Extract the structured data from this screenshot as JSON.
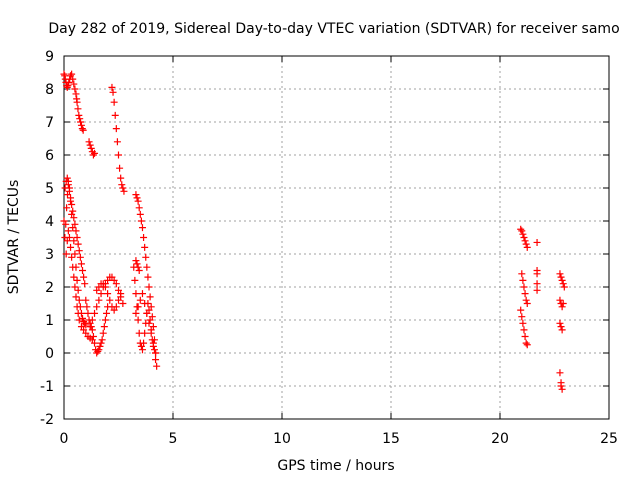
{
  "chart_data": {
    "type": "scatter",
    "title": "Day 282 of 2019, Sidereal Day-to-day VTEC variation (SDTVAR) for receiver samo",
    "xlabel": "GPS time / hours",
    "ylabel": "SDTVAR / TECUs",
    "xlim": [
      0,
      25
    ],
    "ylim": [
      -2,
      9
    ],
    "xticks": [
      "0",
      "5",
      "10",
      "15",
      "20",
      "25"
    ],
    "yticks": [
      "-2",
      "-1",
      "0",
      "1",
      "2",
      "3",
      "4",
      "5",
      "6",
      "7",
      "8",
      "9"
    ],
    "grid": true,
    "marker": "+",
    "color": "#ff0000",
    "series": [
      {
        "name": "SDTVAR",
        "x": [
          0.0,
          0.03,
          0.06,
          0.09,
          0.12,
          0.15,
          0.18,
          0.22,
          0.26,
          0.3,
          0.35,
          0.4,
          0.45,
          0.5,
          0.55,
          0.58,
          0.0,
          0.04,
          0.08,
          0.12,
          0.16,
          0.2,
          0.25,
          0.3,
          0.35,
          0.4,
          0.45,
          0.5,
          0.55,
          0.6,
          0.65,
          0.7,
          0.75,
          0.8,
          0.85,
          0.9,
          0.95,
          1.0,
          0.05,
          0.1,
          0.15,
          0.2,
          0.25,
          0.3,
          0.35,
          0.4,
          0.45,
          0.5,
          0.55,
          0.6,
          0.65,
          0.7,
          0.75,
          0.8,
          0.85,
          0.9,
          0.95,
          0.1,
          0.15,
          0.2,
          0.25,
          0.3,
          0.35,
          0.4,
          0.45,
          0.5,
          0.55,
          0.6,
          0.65,
          0.7,
          0.8,
          0.9,
          1.0,
          1.1,
          1.2,
          1.3,
          0.6,
          0.64,
          0.68,
          0.72,
          0.76,
          0.8,
          0.84,
          0.88,
          1.15,
          1.2,
          1.25,
          1.3,
          1.35,
          1.4,
          1.0,
          1.05,
          1.1,
          1.15,
          1.2,
          1.25,
          1.3,
          1.35,
          1.4,
          1.45,
          1.5,
          1.55,
          1.6,
          1.65,
          1.7,
          1.75,
          1.8,
          1.85,
          1.9,
          1.95,
          2.0,
          1.2,
          1.3,
          1.4,
          1.5,
          1.6,
          1.7,
          1.8,
          1.9,
          2.0,
          2.1,
          2.2,
          2.3,
          2.4,
          2.5,
          2.6,
          2.7,
          1.5,
          1.6,
          1.7,
          1.8,
          1.9,
          2.0,
          2.1,
          2.2,
          2.3,
          2.4,
          2.5,
          2.6,
          2.2,
          2.25,
          2.3,
          2.35,
          2.4,
          2.45,
          2.5,
          2.55,
          2.6,
          2.65,
          2.7,
          2.75,
          3.3,
          3.35,
          3.4,
          3.45,
          3.5,
          3.55,
          3.6,
          3.65,
          3.7,
          3.75,
          3.8,
          3.85,
          3.9,
          3.95,
          4.0,
          4.05,
          4.1,
          4.15,
          4.2,
          4.25,
          3.2,
          3.25,
          3.3,
          3.35,
          3.4,
          3.45,
          3.5,
          3.55,
          3.6,
          3.65,
          3.7,
          3.75,
          3.8,
          3.85,
          3.9,
          3.95,
          4.0,
          4.05,
          4.1,
          4.15,
          4.2,
          3.3,
          3.4,
          3.5,
          3.6,
          3.7,
          3.8,
          3.9,
          4.0,
          4.1,
          4.2,
          3.3,
          3.35,
          3.4,
          3.45,
          20.95,
          21.0,
          21.05,
          21.1,
          21.15,
          21.2,
          21.25,
          21.0,
          21.05,
          21.1,
          21.15,
          21.2,
          21.25,
          20.95,
          21.0,
          21.05,
          21.1,
          21.15,
          21.2,
          21.25,
          21.7,
          21.7,
          21.7,
          21.7,
          21.7,
          22.75,
          22.8,
          22.85,
          22.9,
          22.95,
          22.75,
          22.8,
          22.85,
          22.9,
          22.75,
          22.8,
          22.85,
          22.75,
          22.8,
          22.85,
          22.8
        ],
        "y": [
          8.45,
          8.4,
          8.3,
          8.2,
          8.1,
          8.05,
          8.1,
          8.2,
          8.3,
          8.4,
          8.45,
          8.3,
          8.15,
          8.0,
          7.85,
          7.7,
          4.0,
          3.5,
          3.9,
          4.4,
          4.8,
          5.2,
          5.0,
          4.6,
          4.2,
          3.8,
          3.4,
          3.0,
          2.6,
          2.2,
          1.9,
          1.6,
          1.4,
          1.2,
          1.05,
          0.95,
          0.9,
          0.85,
          5.0,
          5.2,
          5.3,
          5.1,
          4.9,
          4.7,
          4.5,
          4.3,
          4.1,
          3.9,
          3.7,
          3.5,
          3.3,
          3.1,
          2.9,
          2.7,
          2.5,
          2.3,
          2.1,
          3.0,
          3.4,
          3.7,
          3.5,
          3.2,
          2.9,
          2.6,
          2.3,
          2.0,
          1.7,
          1.4,
          1.2,
          1.0,
          0.8,
          0.7,
          0.6,
          0.5,
          0.45,
          0.4,
          7.6,
          7.4,
          7.2,
          7.1,
          7.0,
          6.9,
          6.8,
          6.75,
          6.4,
          6.3,
          6.2,
          6.1,
          6.0,
          6.05,
          1.6,
          1.4,
          1.2,
          1.0,
          0.9,
          0.8,
          0.7,
          0.5,
          0.3,
          0.1,
          0.0,
          0.05,
          0.1,
          0.2,
          0.3,
          0.4,
          0.6,
          0.8,
          1.0,
          1.2,
          1.4,
          0.8,
          1.0,
          1.2,
          1.4,
          1.6,
          1.8,
          2.0,
          2.1,
          2.2,
          2.3,
          2.3,
          2.2,
          2.1,
          1.9,
          1.7,
          1.5,
          1.9,
          2.0,
          2.1,
          2.1,
          2.0,
          1.8,
          1.6,
          1.4,
          1.3,
          1.4,
          1.6,
          1.8,
          8.05,
          7.9,
          7.6,
          7.2,
          6.8,
          6.4,
          6.0,
          5.6,
          5.3,
          5.1,
          5.0,
          4.9,
          4.8,
          4.7,
          4.6,
          4.4,
          4.2,
          4.0,
          3.8,
          3.5,
          3.2,
          2.9,
          2.6,
          2.3,
          2.0,
          1.7,
          1.4,
          1.1,
          0.8,
          0.4,
          0.0,
          -0.4,
          2.6,
          2.2,
          1.8,
          1.4,
          1.0,
          0.6,
          0.3,
          0.2,
          0.1,
          0.3,
          0.6,
          0.9,
          1.2,
          1.5,
          1.3,
          1.0,
          0.7,
          0.4,
          0.2,
          0.1,
          0.0,
          1.2,
          1.4,
          1.6,
          1.8,
          1.5,
          1.2,
          0.9,
          0.6,
          0.3,
          -0.2,
          2.8,
          2.7,
          2.6,
          2.5,
          3.75,
          3.7,
          3.6,
          3.5,
          3.4,
          3.3,
          3.2,
          2.4,
          2.2,
          2.0,
          1.8,
          1.6,
          1.5,
          1.3,
          1.1,
          0.9,
          0.7,
          0.5,
          0.3,
          0.25,
          3.35,
          2.5,
          2.4,
          2.1,
          1.9,
          2.4,
          2.3,
          2.2,
          2.1,
          2.0,
          1.6,
          1.5,
          1.4,
          1.5,
          0.9,
          0.8,
          0.7,
          -0.6,
          -0.9,
          -1.1,
          -1.0
        ]
      }
    ]
  }
}
